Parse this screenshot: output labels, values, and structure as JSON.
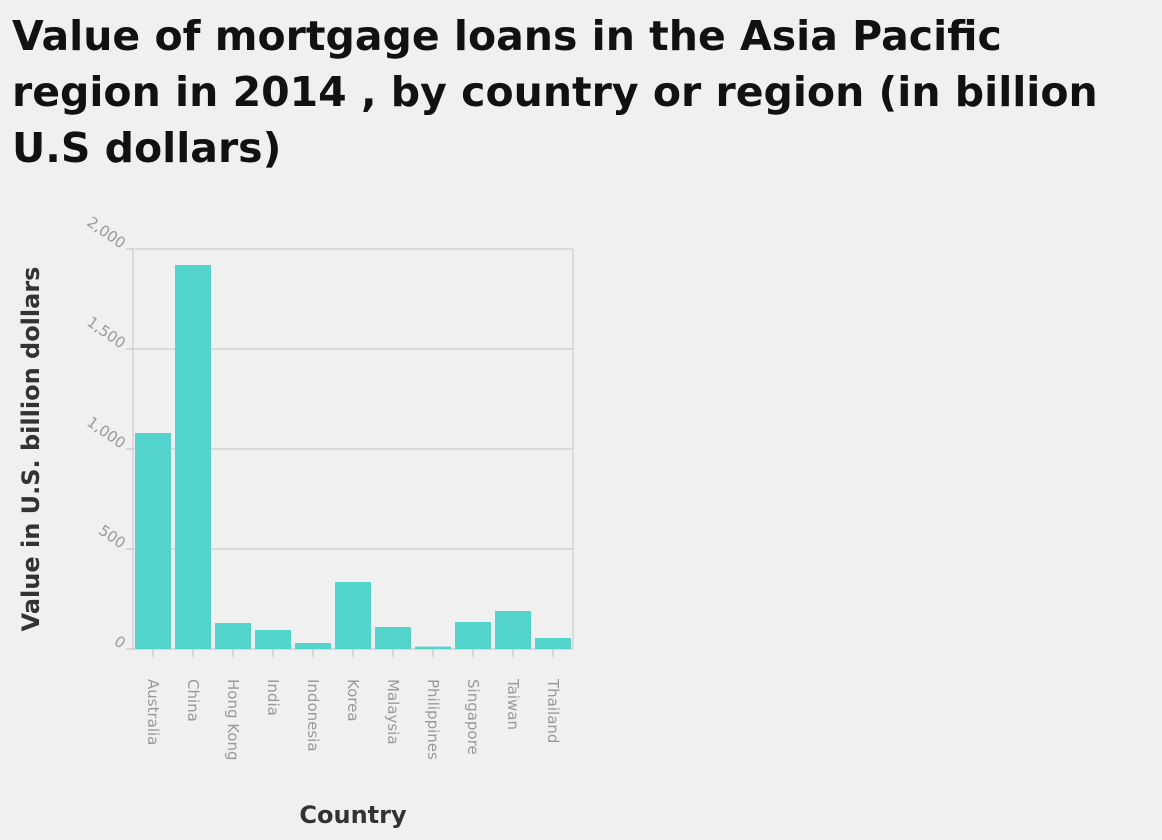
{
  "chart_data": {
    "type": "bar",
    "title": "Value of mortgage loans in the Asia Pacific region in 2014 , by country or region (in billion U.S dollars)",
    "xlabel": "Country",
    "ylabel": "Value in U.S. billion dollars",
    "categories": [
      "Australia",
      "China",
      "Hong Kong",
      "India",
      "Indonesia",
      "Korea",
      "Malaysia",
      "Philippines",
      "Singapore",
      "Taiwan",
      "Thailand"
    ],
    "values": [
      1080,
      1920,
      130,
      95,
      30,
      335,
      110,
      12,
      135,
      190,
      55
    ],
    "ylim": [
      0,
      2000
    ],
    "yticks": [
      0,
      500,
      1000,
      1500,
      2000
    ],
    "ytick_labels": [
      "0",
      "500",
      "1,000",
      "1,500",
      "2,000"
    ],
    "grid": true,
    "bar_color": "#52d4cc",
    "grid_color": "#cccccc",
    "background_color": "#f0f0f0"
  }
}
